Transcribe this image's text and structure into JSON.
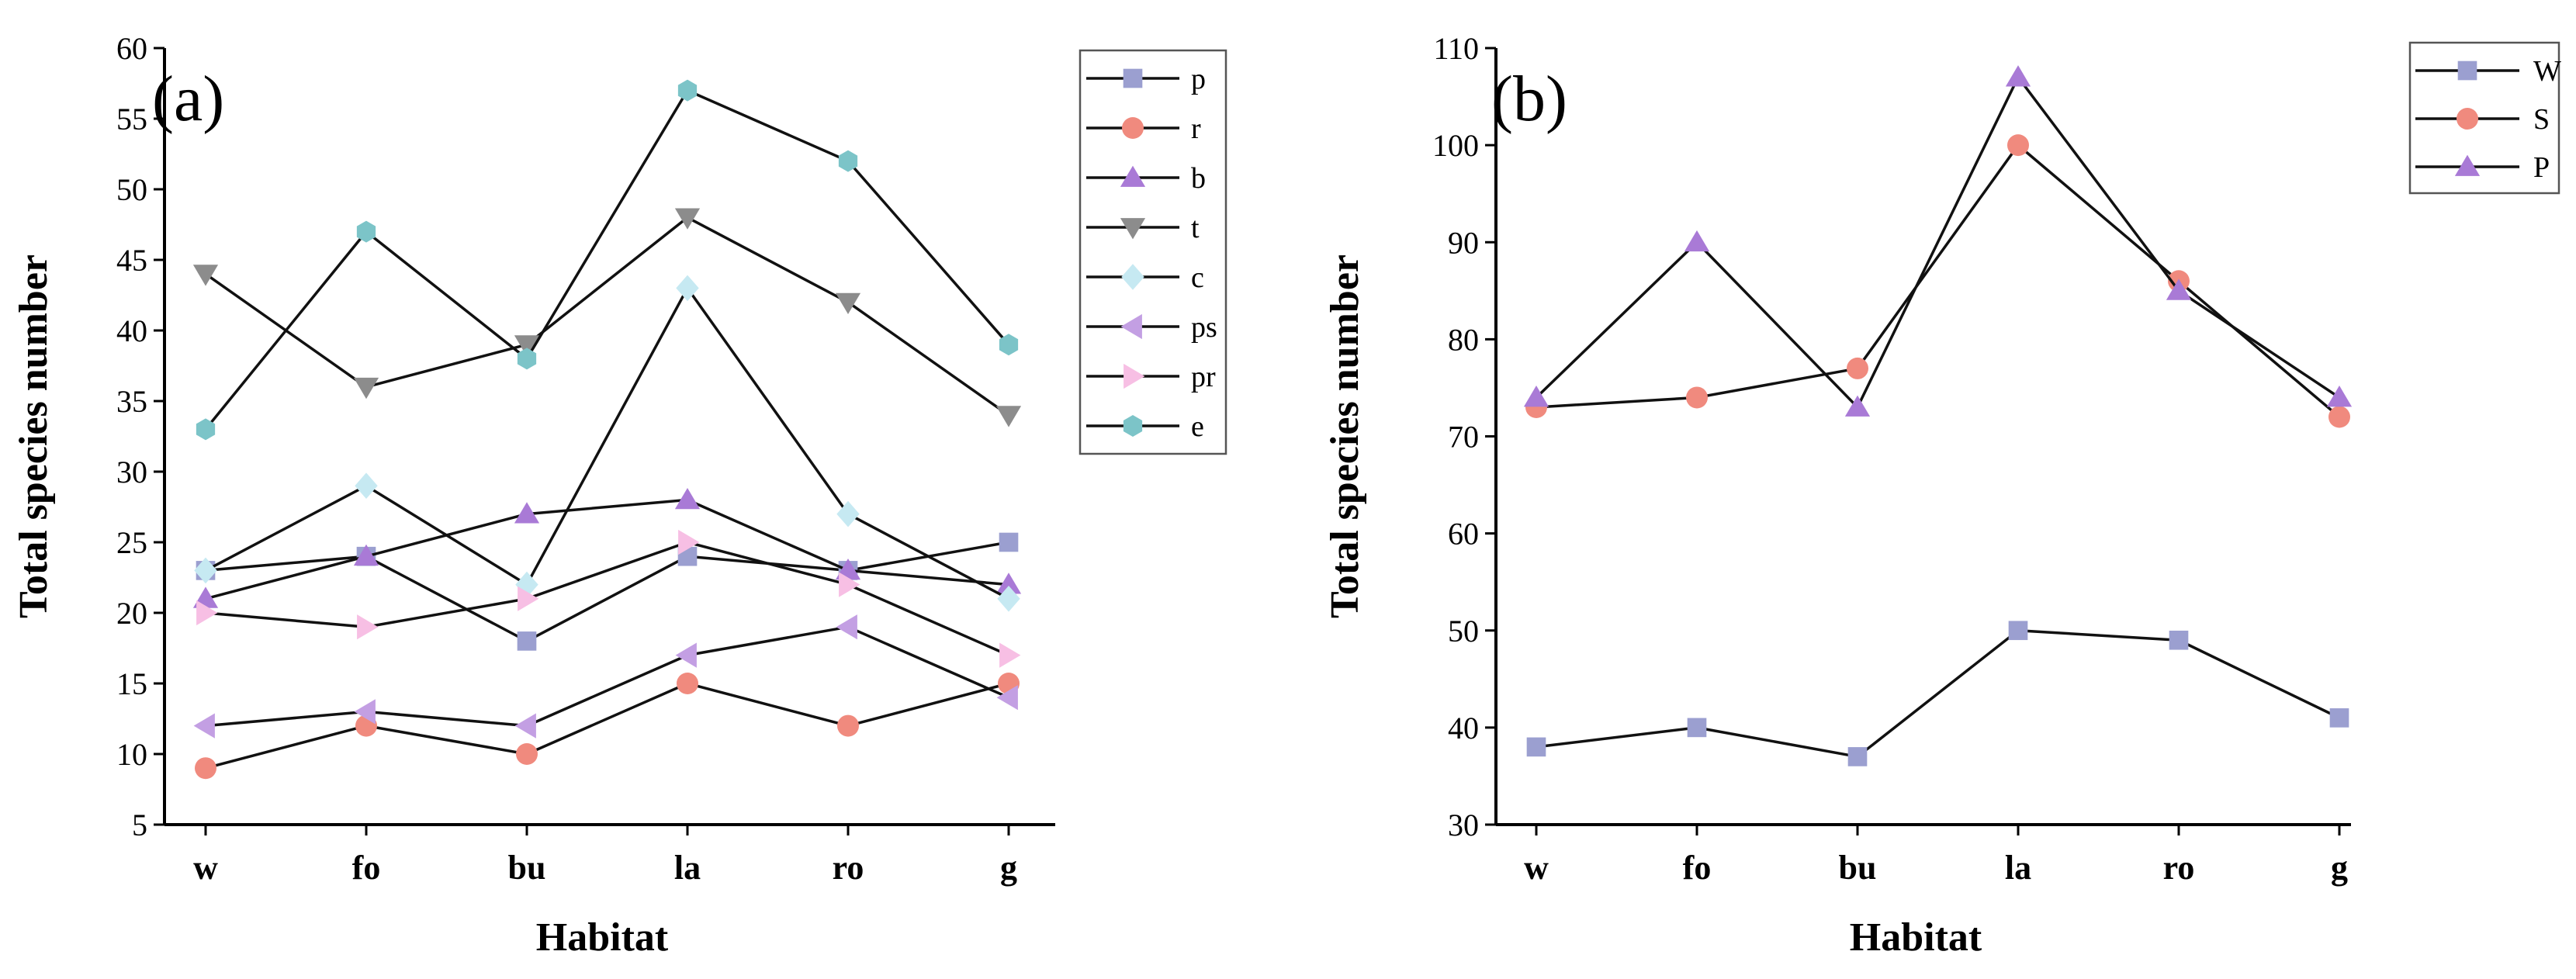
{
  "chart_data": [
    {
      "type": "line",
      "panel_label": "(a)",
      "xlabel": "Habitat",
      "ylabel": "Total species number",
      "categories": [
        "w",
        "fo",
        "bu",
        "la",
        "ro",
        "g"
      ],
      "ylim": [
        5,
        60
      ],
      "yticks": [
        5,
        10,
        15,
        20,
        25,
        30,
        35,
        40,
        45,
        50,
        55,
        60
      ],
      "legend_position": "top-right",
      "series": [
        {
          "name": "p",
          "marker": "square",
          "color": "#9b9fd0",
          "values": [
            23,
            24,
            18,
            24,
            23,
            25
          ]
        },
        {
          "name": "r",
          "marker": "circle",
          "color": "#f08a7e",
          "values": [
            9,
            12,
            10,
            15,
            12,
            15
          ]
        },
        {
          "name": "b",
          "marker": "triangle-up",
          "color": "#a97ad6",
          "values": [
            21,
            24,
            27,
            28,
            23,
            22
          ]
        },
        {
          "name": "t",
          "marker": "triangle-down",
          "color": "#8c8c8c",
          "values": [
            44,
            36,
            39,
            48,
            42,
            34
          ]
        },
        {
          "name": "c",
          "marker": "diamond",
          "color": "#c6e9f2",
          "values": [
            23,
            29,
            22,
            43,
            27,
            21
          ]
        },
        {
          "name": "ps",
          "marker": "triangle-left",
          "color": "#c39fe3",
          "values": [
            12,
            13,
            12,
            17,
            19,
            14
          ]
        },
        {
          "name": "pr",
          "marker": "triangle-right",
          "color": "#f7bfe4",
          "values": [
            20,
            19,
            21,
            25,
            22,
            17
          ]
        },
        {
          "name": "e",
          "marker": "hexagon",
          "color": "#7cc4c8",
          "values": [
            33,
            47,
            38,
            57,
            52,
            39
          ]
        }
      ]
    },
    {
      "type": "line",
      "panel_label": "(b)",
      "xlabel": "Habitat",
      "ylabel": "Total species number",
      "categories": [
        "w",
        "fo",
        "bu",
        "la",
        "ro",
        "g"
      ],
      "ylim": [
        30,
        110
      ],
      "yticks": [
        30,
        40,
        50,
        60,
        70,
        80,
        90,
        100,
        110
      ],
      "legend_position": "top-right",
      "series": [
        {
          "name": "W",
          "marker": "square",
          "color": "#9b9fd0",
          "values": [
            38,
            40,
            37,
            50,
            49,
            41
          ]
        },
        {
          "name": "S",
          "marker": "circle",
          "color": "#f08a7e",
          "values": [
            73,
            74,
            77,
            100,
            86,
            72
          ]
        },
        {
          "name": "P",
          "marker": "triangle-up",
          "color": "#a97ad6",
          "values": [
            74,
            90,
            73,
            107,
            85,
            74
          ]
        }
      ]
    }
  ]
}
